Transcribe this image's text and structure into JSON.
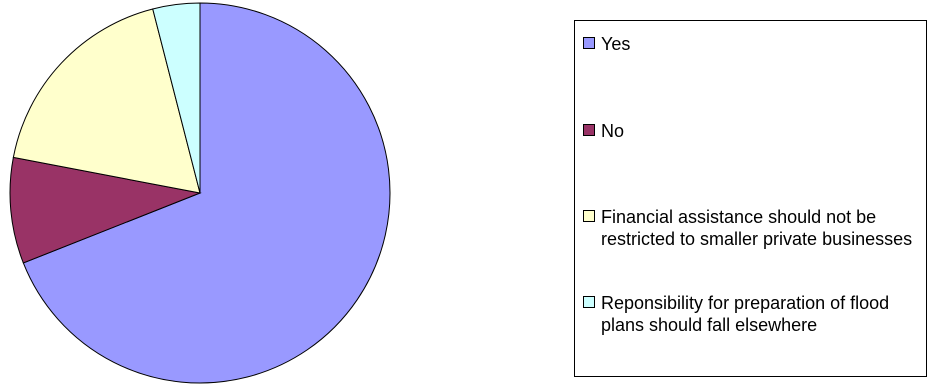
{
  "chart_data": {
    "type": "pie",
    "title": "",
    "legend_position": "right",
    "slices": [
      {
        "label": "Yes",
        "value": 69,
        "color": "#9999FF"
      },
      {
        "label": "No",
        "value": 9,
        "color": "#993366"
      },
      {
        "label": "Financial assistance should not be restricted to smaller private businesses",
        "value": 18,
        "color": "#FFFFCC"
      },
      {
        "label": "Reponsibility for preparation of flood plans should fall elsewhere",
        "value": 4,
        "color": "#CCFFFF"
      }
    ]
  }
}
